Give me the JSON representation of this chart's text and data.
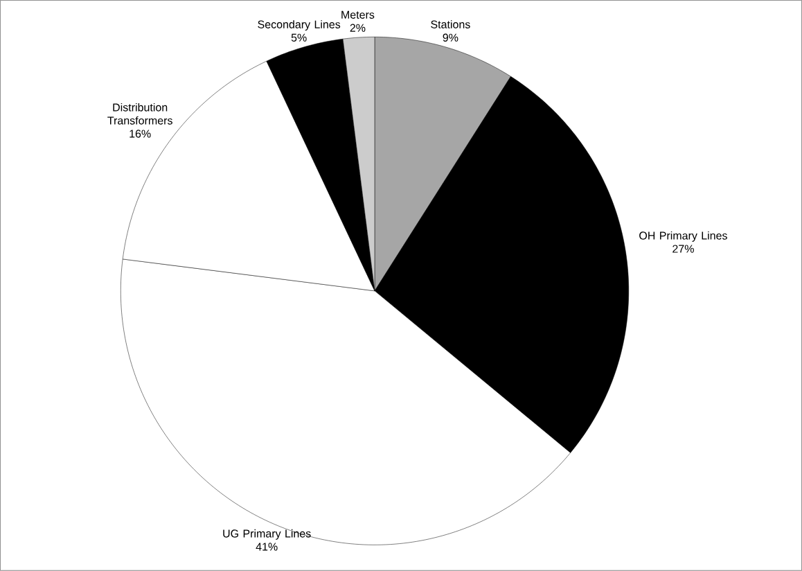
{
  "chart_data": {
    "type": "pie",
    "categories": [
      "Stations",
      "OH Primary Lines",
      "UG Primary Lines",
      "Distribution Transformers",
      "Secondary Lines",
      "Meters"
    ],
    "values": [
      9,
      27,
      41,
      16,
      5,
      2
    ],
    "value_labels": [
      "9%",
      "27%",
      "41%",
      "16%",
      "5%",
      "2%"
    ],
    "colors": [
      "#a6a6a6",
      "#000000",
      "#ffffff",
      "#ffffff",
      "#000000",
      "#cccccc"
    ]
  }
}
